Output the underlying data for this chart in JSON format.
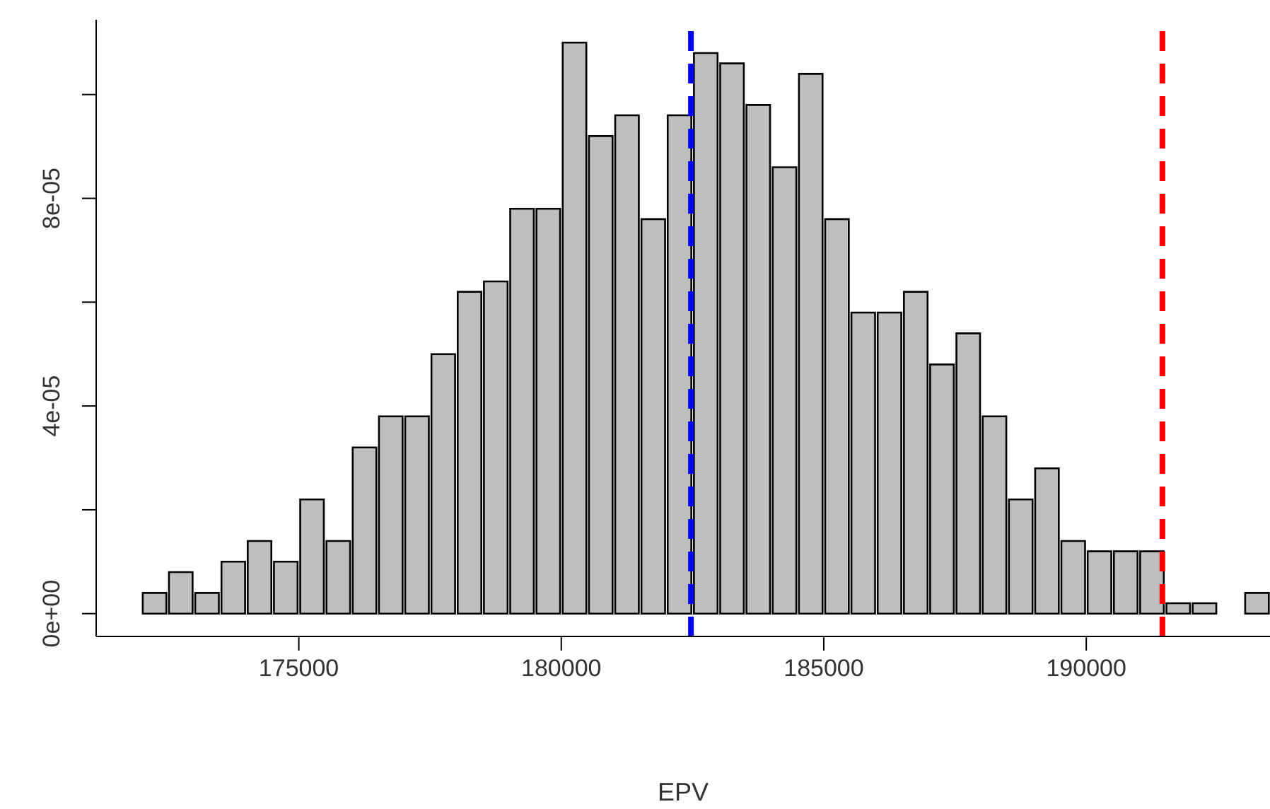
{
  "chart_data": {
    "type": "histogram",
    "xlabel": "EPV",
    "color": "#bebebe",
    "bins": [
      172000,
      172500,
      173000,
      173500,
      174000,
      174500,
      175000,
      175500,
      176000,
      176500,
      177000,
      177500,
      178000,
      178500,
      179000,
      179500,
      180000,
      180500,
      181000,
      181500,
      182000,
      182500,
      183000,
      183500,
      184000,
      184500,
      185000,
      185500,
      186000,
      186500,
      187000,
      187500,
      188000,
      188500,
      189000,
      189500,
      190000,
      190500,
      191000,
      191500,
      192000,
      192500,
      193000,
      193500
    ],
    "values": [
      4e-06,
      8e-06,
      4e-06,
      1e-05,
      1.4e-05,
      1e-05,
      2.2e-05,
      1.4e-05,
      3.2e-05,
      3.8e-05,
      3.8e-05,
      5e-05,
      6.2e-05,
      6.4e-05,
      7.8e-05,
      7.8e-05,
      0.00011,
      9.2e-05,
      9.6e-05,
      7.6e-05,
      9.6e-05,
      0.000108,
      0.000106,
      9.8e-05,
      8.6e-05,
      0.000104,
      7.6e-05,
      5.8e-05,
      5.8e-05,
      6.2e-05,
      4.8e-05,
      5.4e-05,
      3.8e-05,
      2.2e-05,
      2.8e-05,
      1.4e-05,
      1.2e-05,
      1.2e-05,
      1.2e-05,
      2e-06,
      2e-06,
      0,
      4e-06
    ],
    "xlim": [
      171140,
      193500
    ],
    "xticks": [
      175000,
      180000,
      185000,
      190000
    ],
    "ylim": [
      -4.4e-06,
      0.0001144
    ],
    "yticks": [
      {
        "value": 0,
        "label": "0e+00"
      },
      {
        "value": 2e-05,
        "label": null
      },
      {
        "value": 4e-05,
        "label": "4e-05"
      },
      {
        "value": 6e-05,
        "label": null
      },
      {
        "value": 8e-05,
        "label": "8e-05"
      },
      {
        "value": 0.0001,
        "label": null
      }
    ],
    "ref_lines": [
      {
        "axis": "x",
        "value": 182470,
        "color": "#0000ff",
        "line_style": "dashed"
      },
      {
        "axis": "x",
        "value": 191450,
        "color": "#ff0000",
        "line_style": "dashed"
      }
    ],
    "grid": false
  }
}
